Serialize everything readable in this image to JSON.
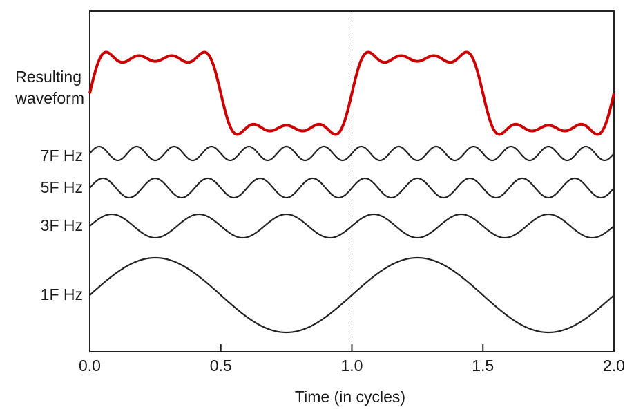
{
  "chart_data": {
    "type": "line",
    "xlabel": "Time (in cycles)",
    "xlim": [
      0,
      2
    ],
    "xticks": [
      "0.0",
      "0.5",
      "1.0",
      "1.5",
      "2.0"
    ],
    "marker_line_x": 1.0,
    "series": [
      {
        "name": "Resulting waveform",
        "kind": "sum",
        "harmonics": [
          1,
          3,
          5,
          7
        ],
        "color": "#cc0000"
      },
      {
        "name": "7F Hz",
        "harmonic": 7,
        "amplitude": 0.143,
        "color": "#222222"
      },
      {
        "name": "5F Hz",
        "harmonic": 5,
        "amplitude": 0.2,
        "color": "#222222"
      },
      {
        "name": "3F Hz",
        "harmonic": 3,
        "amplitude": 0.333,
        "color": "#222222"
      },
      {
        "name": "1F Hz",
        "harmonic": 1,
        "amplitude": 1.0,
        "color": "#222222"
      }
    ],
    "series_labels": {
      "result_line1": "Resulting",
      "result_line2": "waveform",
      "h7": "7F Hz",
      "h5": "5F Hz",
      "h3": "3F Hz",
      "h1": "1F Hz"
    }
  }
}
